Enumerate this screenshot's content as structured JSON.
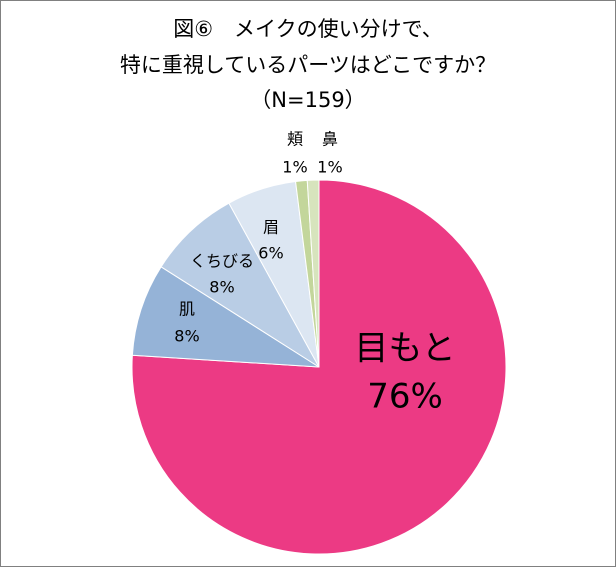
{
  "chart_data": {
    "type": "pie",
    "title": [
      "図⑥　メイクの使い分けで、",
      "特に重視しているパーツはどこですか？"
    ],
    "subtitle": "（N=159）",
    "categories": [
      "目もと",
      "肌",
      "くちびる",
      "眉",
      "頬",
      "鼻"
    ],
    "values": [
      76,
      8,
      8,
      6,
      1,
      1
    ],
    "value_labels": [
      "76%",
      "8%",
      "8%",
      "6%",
      "1%",
      "1%"
    ],
    "colors": [
      "#ec3a84",
      "#95b3d7",
      "#b9cde5",
      "#dce6f2",
      "#c3d69b",
      "#d7e4bd"
    ]
  }
}
